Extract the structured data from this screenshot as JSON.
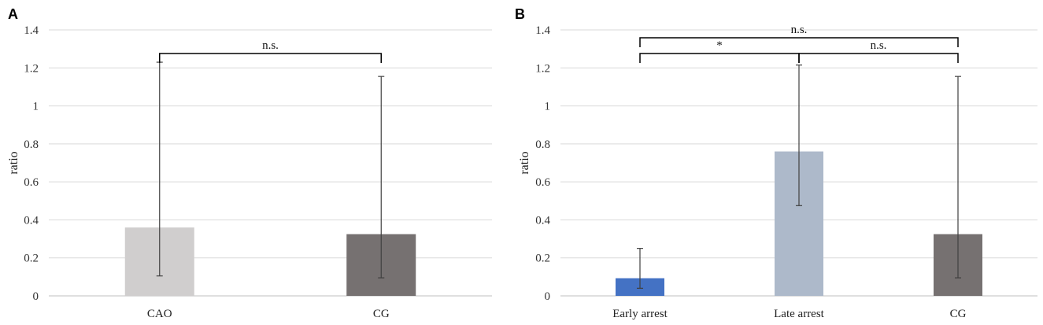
{
  "chart_data": [
    {
      "type": "bar",
      "panel": "A",
      "title": "",
      "xlabel": "",
      "ylabel": "ratio",
      "ylim": [
        0,
        1.4
      ],
      "yticks": [
        "0",
        "0.2",
        "0.4",
        "0.6",
        "0.8",
        "1",
        "1.2",
        "1.4"
      ],
      "categories": [
        "CAO",
        "CG"
      ],
      "values": [
        0.36,
        0.325
      ],
      "error_low": [
        0.105,
        0.095
      ],
      "error_high": [
        1.23,
        1.155
      ],
      "colors": [
        "#d0cece",
        "#767171"
      ],
      "grid": true,
      "annotations": [
        {
          "from": 0,
          "to": 1,
          "label": "n.s.",
          "level": 1
        }
      ]
    },
    {
      "type": "bar",
      "panel": "B",
      "title": "",
      "xlabel": "",
      "ylabel": "ratio",
      "ylim": [
        0,
        1.4
      ],
      "yticks": [
        "0",
        "0.2",
        "0.4",
        "0.6",
        "0.8",
        "1",
        "1.2",
        "1.4"
      ],
      "categories": [
        "Early arrest",
        "Late arrest",
        "CG"
      ],
      "values": [
        0.093,
        0.76,
        0.325
      ],
      "error_low": [
        0.04,
        0.475,
        0.095
      ],
      "error_high": [
        0.25,
        1.215,
        1.155
      ],
      "colors": [
        "#4472c4",
        "#adb9ca",
        "#767171"
      ],
      "grid": true,
      "annotations": [
        {
          "from": 0,
          "to": 2,
          "label": "n.s.",
          "level": 2
        },
        {
          "from": 0,
          "to": 1,
          "label": "*",
          "level": 1
        },
        {
          "from": 1,
          "to": 2,
          "label": "n.s.",
          "level": 1
        }
      ]
    }
  ]
}
